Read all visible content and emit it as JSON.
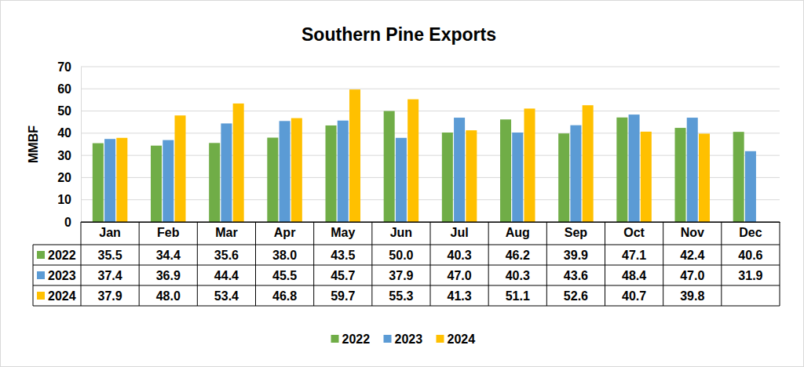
{
  "chart_data": {
    "type": "bar",
    "title": "Southern Pine Exports",
    "y_label": "MMBF",
    "categories": [
      "Jan",
      "Feb",
      "Mar",
      "Apr",
      "May",
      "Jun",
      "Jul",
      "Aug",
      "Sep",
      "Oct",
      "Nov",
      "Dec"
    ],
    "series": [
      {
        "name": "2022",
        "color": "#70ad47",
        "values": [
          35.5,
          34.4,
          35.6,
          38.0,
          43.5,
          50.0,
          40.3,
          46.2,
          39.9,
          47.1,
          42.4,
          40.6
        ],
        "value_labels": [
          "35.5",
          "34.4",
          "35.6",
          "38.0",
          "43.5",
          "50.0",
          "40.3",
          "46.2",
          "39.9",
          "47.1",
          "42.4",
          "40.6"
        ]
      },
      {
        "name": "2023",
        "color": "#5b9bd5",
        "values": [
          37.4,
          36.9,
          44.4,
          45.5,
          45.7,
          37.9,
          47.0,
          40.3,
          43.6,
          48.4,
          47.0,
          31.9
        ],
        "value_labels": [
          "37.4",
          "36.9",
          "44.4",
          "45.5",
          "45.7",
          "37.9",
          "47.0",
          "40.3",
          "43.6",
          "48.4",
          "47.0",
          "31.9"
        ]
      },
      {
        "name": "2024",
        "color": "#ffc000",
        "values": [
          37.9,
          48.0,
          53.4,
          46.8,
          59.7,
          55.3,
          41.3,
          51.1,
          52.6,
          40.7,
          39.8,
          null
        ],
        "value_labels": [
          "37.9",
          "48.0",
          "53.4",
          "46.8",
          "59.7",
          "55.3",
          "41.3",
          "51.1",
          "52.6",
          "40.7",
          "39.8",
          null
        ]
      }
    ],
    "ylim": [
      0,
      70
    ],
    "yticks": [
      0,
      10,
      20,
      30,
      40,
      50,
      60,
      70
    ],
    "grid": true,
    "legend": "bottom"
  }
}
